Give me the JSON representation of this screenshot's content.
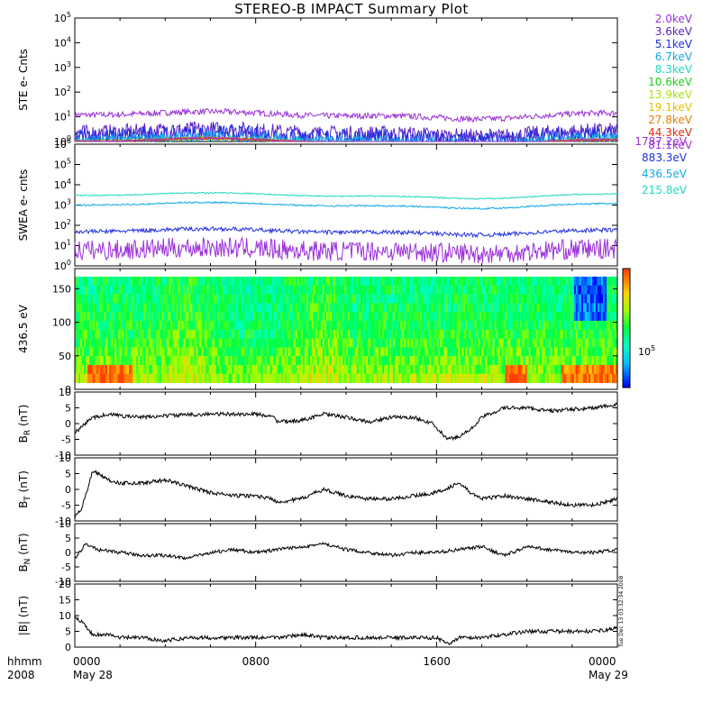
{
  "title": "STEREO-B IMPACT Summary Plot",
  "timestamp": "Tue Dec 13 03:32:34 2008",
  "x_axis": {
    "label_line1": "hhmm",
    "label_line2": "2008",
    "ticks": [
      {
        "t": 0,
        "top": "0000",
        "bottom": "May 28"
      },
      {
        "t": 8,
        "top": "0800",
        "bottom": ""
      },
      {
        "t": 16,
        "top": "1600",
        "bottom": ""
      },
      {
        "t": 24,
        "top": "0000",
        "bottom": "May 29"
      }
    ]
  },
  "colors": {
    "ste": [
      "#9b30d9",
      "#5b22c7",
      "#2030e0",
      "#10a8e8",
      "#20d8c0",
      "#20d020",
      "#a8e010",
      "#e8c000",
      "#e88000",
      "#d83010"
    ],
    "swea": [
      "#9b30d9",
      "#2030e0",
      "#10a8e8",
      "#20d8c0"
    ],
    "colorbar": [
      "#ff0000",
      "#ff8000",
      "#ffff00",
      "#00ff00",
      "#00ffff",
      "#0000ff",
      "#8000c0"
    ]
  },
  "chart_data": [
    {
      "type": "line",
      "name": "ste",
      "ylabel": "STE e- Cnts",
      "ylog": true,
      "ylim": [
        1,
        100000
      ],
      "yticks": [
        1,
        10,
        100,
        1000,
        10000,
        100000
      ],
      "x_unit": "hours since 0000 May 28",
      "xlim": [
        0,
        24
      ],
      "series": [
        {
          "name": "2.0keV",
          "level": 12,
          "noise": 0.12
        },
        {
          "name": "3.6keV",
          "level": 2.2,
          "noise": 0.35
        },
        {
          "name": "5.1keV",
          "level": 1.6,
          "noise": 0.35
        },
        {
          "name": "6.7keV",
          "level": 1.2,
          "noise": 0.2
        },
        {
          "name": "8.3keV",
          "level": 1,
          "noise": 0.1
        },
        {
          "name": "10.6keV",
          "level": 1,
          "noise": 0.05
        },
        {
          "name": "13.9keV",
          "level": 1,
          "noise": 0.05
        },
        {
          "name": "19.1keV",
          "level": 1,
          "noise": 0.05
        },
        {
          "name": "27.8keV",
          "level": 1,
          "noise": 0.05
        },
        {
          "name": "44.3keV",
          "level": 1,
          "noise": 0.05
        },
        {
          "name": "81.1keV",
          "level": 1,
          "noise": 0.05
        }
      ]
    },
    {
      "type": "line",
      "name": "swea",
      "ylabel": "SWEA e- cnts",
      "ylog": true,
      "ylim": [
        1,
        1000000
      ],
      "yticks": [
        1,
        10,
        100,
        1000,
        10000,
        100000,
        1000000
      ],
      "x_unit": "hours since 0000 May 28",
      "xlim": [
        0,
        24
      ],
      "series": [
        {
          "name": "1787.2eV",
          "level": 6,
          "noise": 0.5
        },
        {
          "name": "883.3eV",
          "level": 50,
          "noise": 0.1
        },
        {
          "name": "436.5eV",
          "level": 1000,
          "noise": 0.04
        },
        {
          "name": "215.8eV",
          "level": 3000,
          "noise": 0.03
        }
      ]
    },
    {
      "type": "heatmap",
      "name": "pad",
      "ylabel": "436.5 eV",
      "ylim": [
        0,
        180
      ],
      "yticks": [
        0,
        50,
        100,
        150
      ],
      "xlim": [
        0,
        24
      ],
      "colorbar_label": "10^5"
    },
    {
      "type": "line",
      "name": "br",
      "ylabel": "BR (nT)",
      "ylabel_main": "B",
      "ylabel_sub": "R",
      "ylabel_unit": "(nT)",
      "ylim": [
        -10,
        10
      ],
      "yticks": [
        -10,
        -5,
        0,
        5,
        10
      ],
      "xlim": [
        0,
        24
      ],
      "x": [
        0,
        0.3,
        0.8,
        1.5,
        2,
        3,
        4,
        5,
        6,
        7,
        8,
        8.7,
        9,
        10,
        11,
        11.5,
        12,
        13,
        14,
        15,
        15.8,
        16.5,
        17,
        17.5,
        18,
        19,
        20,
        21,
        22,
        23,
        24
      ],
      "y": [
        -3,
        -1,
        2,
        3,
        2.5,
        2,
        2.5,
        2.8,
        3,
        3,
        3,
        2.5,
        0.5,
        1,
        3,
        2.5,
        2,
        0.5,
        2,
        2,
        0,
        -5,
        -4,
        -2,
        2,
        5,
        5,
        4,
        4.5,
        5,
        6
      ]
    },
    {
      "type": "line",
      "name": "bt",
      "ylabel": "BT (nT)",
      "ylabel_main": "B",
      "ylabel_sub": "T",
      "ylabel_unit": "(nT)",
      "ylim": [
        -10,
        10
      ],
      "yticks": [
        -10,
        -5,
        0,
        5,
        10
      ],
      "xlim": [
        0,
        24
      ],
      "x": [
        0,
        0.3,
        0.8,
        1.5,
        2,
        3,
        4,
        5,
        6,
        7,
        8,
        8.7,
        9,
        10,
        11,
        12,
        13,
        14,
        15,
        16,
        17,
        17.5,
        18,
        19,
        20,
        21,
        22,
        23,
        24
      ],
      "y": [
        -9,
        -6,
        6,
        3,
        2,
        2,
        3,
        1,
        -1,
        -2,
        -2,
        -3,
        -4,
        -3,
        0,
        -2,
        -3,
        -3,
        -2,
        -1,
        2,
        -1,
        -3,
        -2,
        -3,
        -4,
        -5,
        -5,
        -3
      ]
    },
    {
      "type": "line",
      "name": "bn",
      "ylabel": "BN (nT)",
      "ylabel_main": "B",
      "ylabel_sub": "N",
      "ylabel_unit": "(nT)",
      "ylim": [
        -10,
        10
      ],
      "yticks": [
        -10,
        -5,
        0,
        5,
        10
      ],
      "xlim": [
        0,
        24
      ],
      "x": [
        0,
        0.5,
        1,
        2,
        3,
        4,
        5,
        6,
        7,
        8,
        9,
        10,
        11,
        12,
        13,
        14,
        15,
        16,
        17,
        18,
        19,
        20,
        21,
        22,
        23,
        24
      ],
      "y": [
        -2,
        3,
        1,
        0,
        -1,
        -1,
        -2,
        0,
        1,
        0,
        1,
        2,
        3,
        1,
        0,
        -1,
        0,
        0,
        1,
        2,
        -1,
        2,
        1,
        0,
        0,
        1
      ]
    },
    {
      "type": "line",
      "name": "bmag",
      "ylabel": "|B| (nT)",
      "ylim": [
        0,
        20
      ],
      "yticks": [
        0,
        5,
        10,
        15,
        20
      ],
      "xlim": [
        0,
        24
      ],
      "x": [
        0,
        0.3,
        0.8,
        1.5,
        2,
        3,
        4,
        5,
        6,
        7,
        8,
        9,
        10,
        11,
        12,
        13,
        14,
        15,
        16,
        16.5,
        17,
        18,
        19,
        20,
        21,
        22,
        23,
        24
      ],
      "y": [
        10,
        8,
        4,
        4,
        3,
        3,
        2,
        3,
        3,
        3,
        3,
        3,
        4,
        3,
        3,
        3,
        3,
        3,
        3,
        1,
        3,
        3,
        4,
        5,
        5,
        5,
        5,
        6
      ]
    }
  ]
}
